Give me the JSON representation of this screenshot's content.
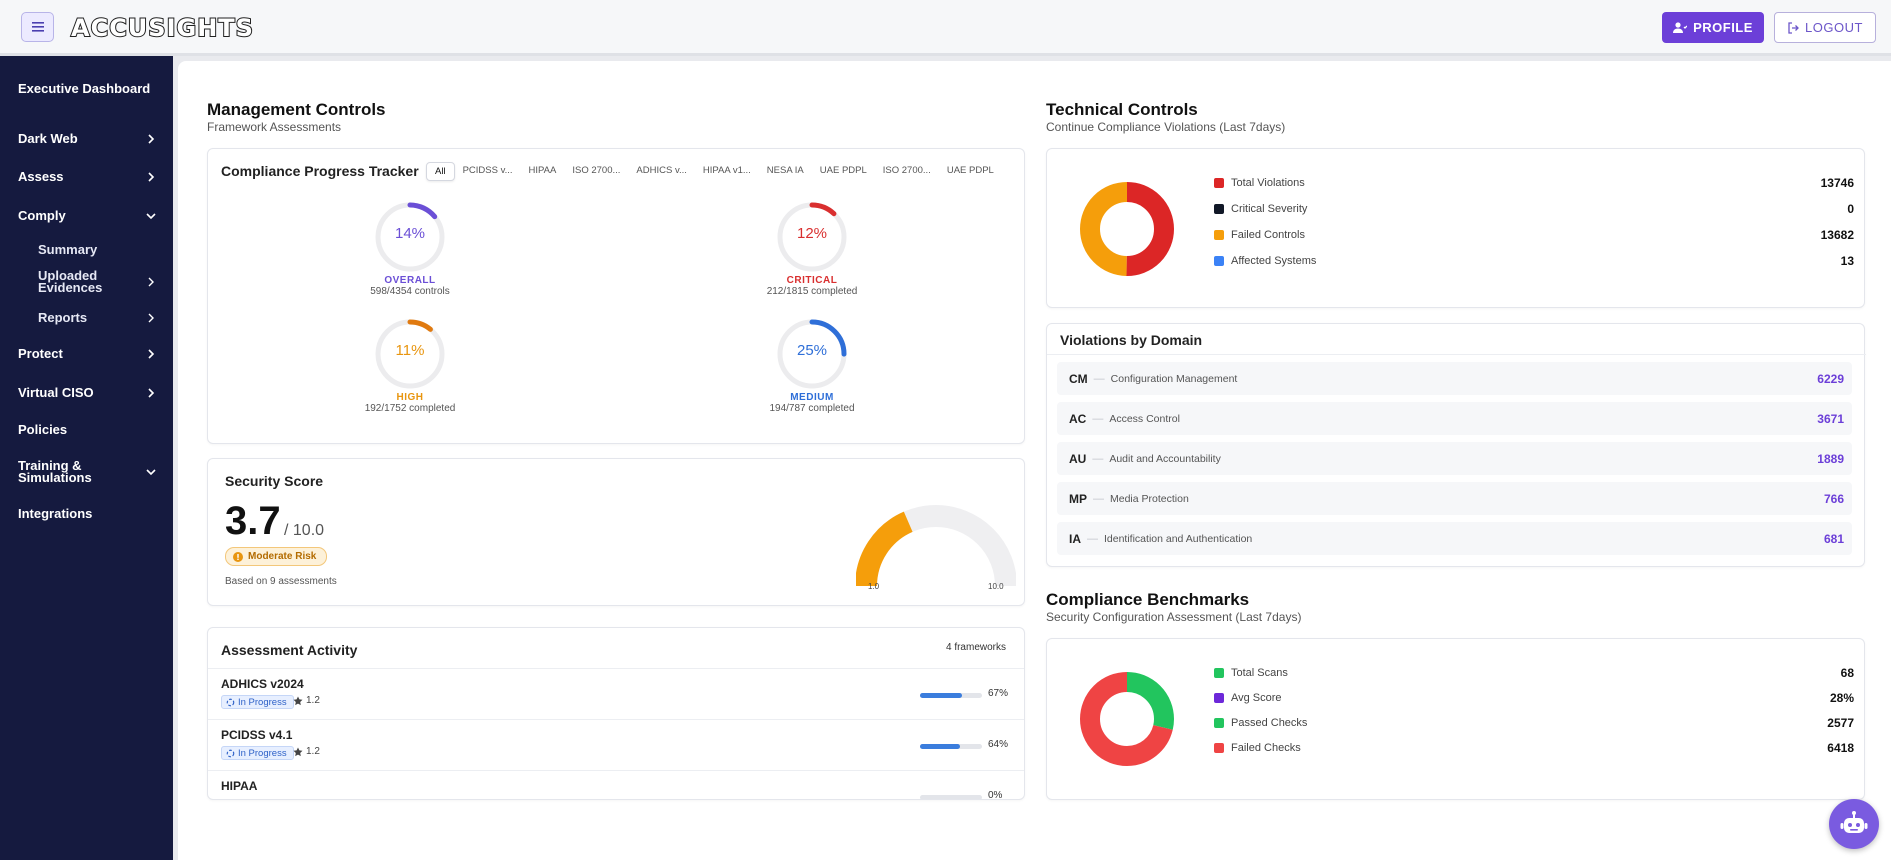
{
  "header": {
    "logo": "ACCUSIGHTS",
    "profile_label": "PROFILE",
    "logout_label": "LOGOUT"
  },
  "sidebar": {
    "items": [
      {
        "label": "Executive Dashboard"
      },
      {
        "label": "Dark Web"
      },
      {
        "label": "Assess"
      },
      {
        "label": "Comply"
      },
      {
        "label": "Protect"
      },
      {
        "label": "Virtual CISO"
      },
      {
        "label": "Policies"
      },
      {
        "label": "Training &\nSimulations"
      },
      {
        "label": "Integrations"
      }
    ],
    "comply_sub": [
      {
        "label": "Summary"
      },
      {
        "label": "Uploaded\nEvidences"
      },
      {
        "label": "Reports"
      }
    ]
  },
  "management": {
    "title": "Management Controls",
    "subtitle": "Framework Assessments",
    "tracker": {
      "title": "Compliance Progress Tracker",
      "tabs": [
        "All",
        "PCIDSS v...",
        "HIPAA",
        "ISO 2700...",
        "ADHICS v...",
        "HIPAA v1...",
        "NESA IA",
        "UAE PDPL",
        "ISO 2700...",
        "UAE PDPL"
      ],
      "gauges": [
        {
          "pct": 14,
          "pct_label": "14%",
          "label": "OVERALL",
          "sub": "598/4354 controls",
          "color": "#6b4fd6"
        },
        {
          "pct": 12,
          "pct_label": "12%",
          "label": "CRITICAL",
          "sub": "212/1815 completed",
          "color": "#d92f2f"
        },
        {
          "pct": 11,
          "pct_label": "11%",
          "label": "HIGH",
          "sub": "192/1752 completed",
          "color": "#e07a10"
        },
        {
          "pct": 25,
          "pct_label": "25%",
          "label": "MEDIUM",
          "sub": "194/787 completed",
          "color": "#2f6fd8"
        }
      ]
    },
    "security_score": {
      "title": "Security Score",
      "score": "3.7",
      "out_of": "/ 10.0",
      "score_value": 3.7,
      "max_value": 10,
      "badge": "Moderate Risk",
      "note": "Based on 9 assessments",
      "gauge_min": "1.0",
      "gauge_max": "10.0",
      "gauge_color": "#f59e0b"
    },
    "activity": {
      "title": "Assessment Activity",
      "count": "4 frameworks",
      "rows": [
        {
          "name": "ADHICS v2024",
          "status": "In Progress",
          "rating": "1.2",
          "pct": 67,
          "pct_label": "67%"
        },
        {
          "name": "PCIDSS v4.1",
          "status": "In Progress",
          "rating": "1.2",
          "pct": 64,
          "pct_label": "64%"
        },
        {
          "name": "HIPAA",
          "status": "",
          "rating": "",
          "pct": 0,
          "pct_label": "0%"
        }
      ]
    }
  },
  "technical": {
    "title": "Technical Controls",
    "subtitle": "Continue Compliance Violations (Last 7days)",
    "legend": [
      {
        "label": "Total Violations",
        "value": "13746",
        "color": "#dc2626"
      },
      {
        "label": "Critical Severity",
        "value": "0",
        "color": "#111827"
      },
      {
        "label": "Failed Controls",
        "value": "13682",
        "color": "#f59e0b"
      },
      {
        "label": "Affected Systems",
        "value": "13",
        "color": "#3b82f6"
      }
    ],
    "donut_slices": [
      {
        "value": 13746,
        "color": "#dc2626"
      },
      {
        "value": 0,
        "color": "#111827"
      },
      {
        "value": 13682,
        "color": "#f59e0b"
      },
      {
        "value": 13,
        "color": "#3b82f6"
      }
    ],
    "violations_by_domain": {
      "title": "Violations by Domain",
      "rows": [
        {
          "code": "CM",
          "name": "Configuration Management",
          "value": "6229"
        },
        {
          "code": "AC",
          "name": "Access Control",
          "value": "3671"
        },
        {
          "code": "AU",
          "name": "Audit and Accountability",
          "value": "1889"
        },
        {
          "code": "MP",
          "name": "Media Protection",
          "value": "766"
        },
        {
          "code": "IA",
          "name": "Identification and Authentication",
          "value": "681"
        }
      ]
    }
  },
  "benchmarks": {
    "title": "Compliance Benchmarks",
    "subtitle": "Security Configuration Assessment (Last 7days)",
    "legend": [
      {
        "label": "Total Scans",
        "value": "68",
        "color": "#22c55e"
      },
      {
        "label": "Avg Score",
        "value": "28%",
        "color": "#6d28d9"
      },
      {
        "label": "Passed Checks",
        "value": "2577",
        "color": "#22c55e"
      },
      {
        "label": "Failed Checks",
        "value": "6418",
        "color": "#ef4444"
      }
    ],
    "donut_slices": [
      {
        "value": 2577,
        "color": "#22c55e"
      },
      {
        "value": 6418,
        "color": "#ef4444"
      }
    ]
  }
}
